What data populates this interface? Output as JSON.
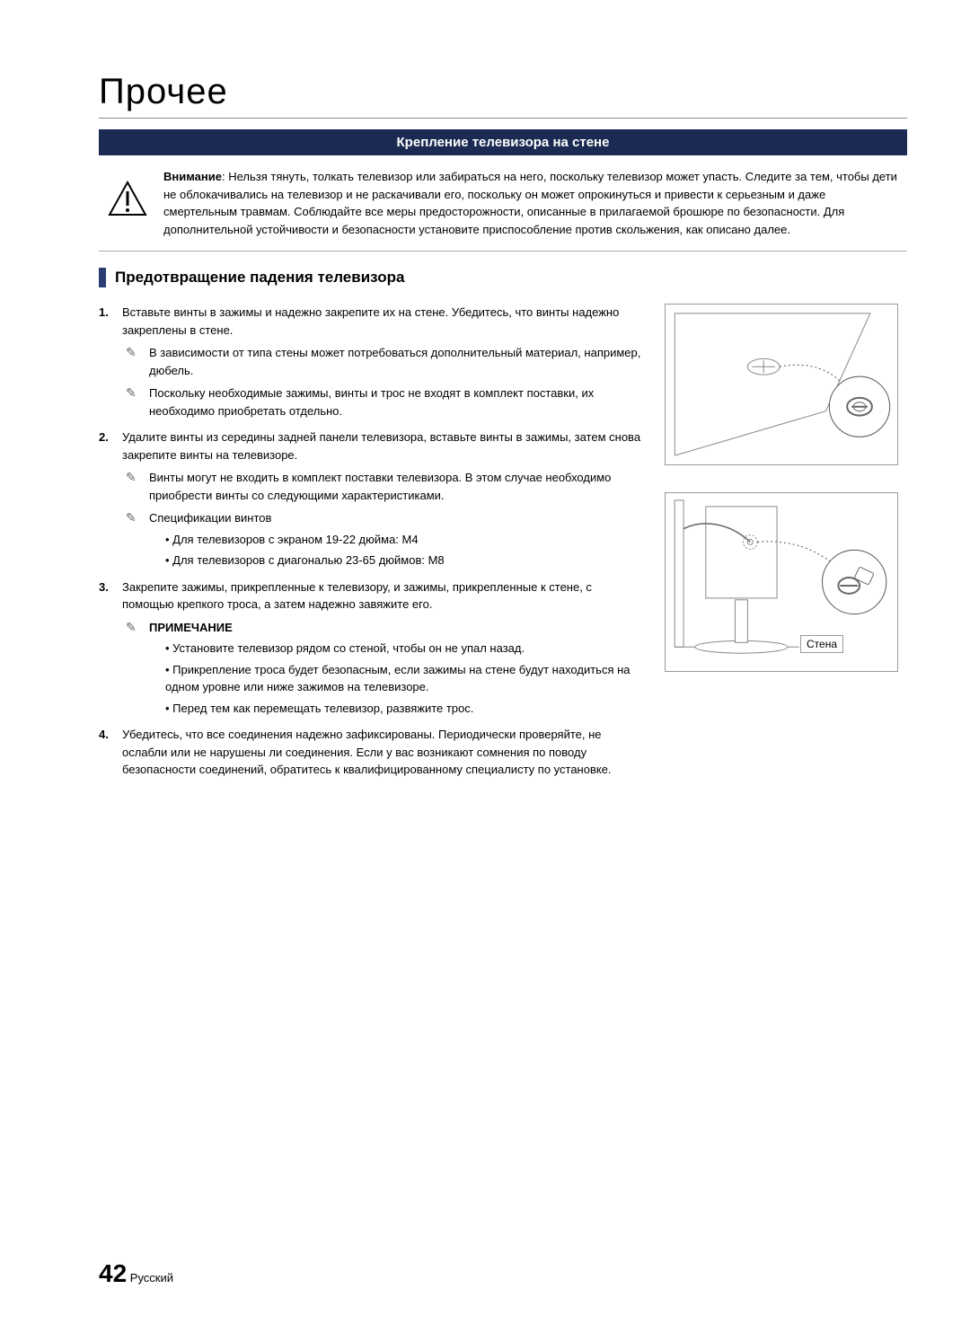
{
  "page_title": "Прочее",
  "section_bar": "Крепление телевизора на стене",
  "warning": {
    "bold": "Внимание",
    "text": ": Нельзя тянуть, толкать телевизор или забираться на него, поскольку телевизор может упасть. Следите за тем, чтобы дети не облокачивались на телевизор и не раскачивали его, поскольку он может опрокинуться и привести к серьезным и даже смертельным травмам. Соблюдайте все меры предосторожности, описанные в прилагаемой брошюре по безопасности. Для дополнительной устойчивости и безопасности установите приспособление против скольжения, как описано далее."
  },
  "subheading": "Предотвращение падения телевизора",
  "steps": [
    {
      "num": "1.",
      "text": "Вставьте винты в зажимы и надежно закрепите их на стене. Убедитесь, что винты надежно закреплены в стене.",
      "notes": [
        {
          "text": "В зависимости от типа стены может потребоваться дополнительный материал, например, дюбель."
        },
        {
          "text": "Поскольку необходимые зажимы, винты и трос не входят в комплект поставки, их необходимо приобретать отдельно."
        }
      ]
    },
    {
      "num": "2.",
      "text": "Удалите винты из середины задней панели телевизора, вставьте винты в зажимы, затем снова закрепите винты на телевизоре.",
      "notes": [
        {
          "text": "Винты могут не входить в комплект поставки телевизора. В этом случае необходимо приобрести винты со следующими характеристиками."
        },
        {
          "text": "Спецификации винтов",
          "bullets": [
            "Для телевизоров с экраном 19-22 дюйма: M4",
            "Для телевизоров с диагональю 23-65 дюймов: M8"
          ]
        }
      ]
    },
    {
      "num": "3.",
      "text": "Закрепите зажимы, прикрепленные к телевизору, и зажимы, прикрепленные к стене, с помощью крепкого троса, а затем надежно завяжите его.",
      "notes": [
        {
          "bold": "ПРИМЕЧАНИЕ",
          "bullets": [
            "Установите телевизор рядом со стеной, чтобы он не упал назад.",
            "Прикрепление троса будет безопасным, если зажимы на стене будут находиться на одном уровне или ниже зажимов на телевизоре.",
            "Перед тем как перемещать телевизор, развяжите трос."
          ]
        }
      ]
    },
    {
      "num": "4.",
      "text": "Убедитесь, что все соединения надежно зафиксированы. Периодически проверяйте, не ослабли или не нарушены ли соединения. Если у вас возникают сомнения по поводу безопасности соединений, обратитесь к квалифицированному специалисту по установке."
    }
  ],
  "wall_label": "Стена",
  "footer": {
    "page_number": "42",
    "lang": "Русский"
  },
  "colors": {
    "bar_bg": "#1a2a52",
    "marker": "#2a3e74",
    "border": "#999999"
  }
}
